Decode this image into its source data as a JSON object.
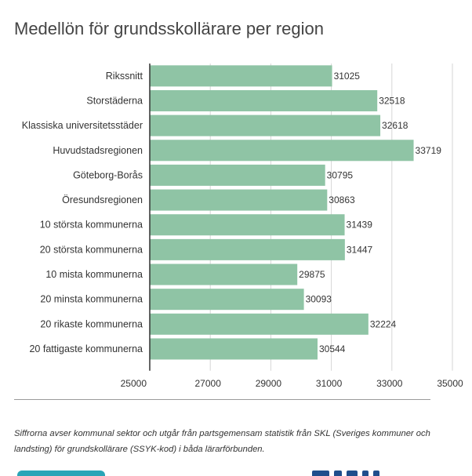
{
  "title": "Medellön för grundsskollärare per region",
  "footnote": "Siffrorna avser kommunal sektor och utgår från partsgemensam statistik från SKL (Sveriges kommuner och landsting) för grundskollärare (SSYK-kod) i båda lärarförbunden.",
  "colors": {
    "bar": "#8fc4a5",
    "grid": "#d6d6d6",
    "axis": "#333333",
    "text": "#333333"
  },
  "chart_data": {
    "type": "bar",
    "orientation": "horizontal",
    "categories": [
      "Rikssnitt",
      "Storstäderna",
      "Klassiska universitetsstäder",
      "Huvudstadsregionen",
      "Göteborg-Borås",
      "Öresundsregionen",
      "10 största kommunerna",
      "20 största kommunerna",
      "10 mista kommunerna",
      "20 minsta kommunerna",
      "20 rikaste kommunerna",
      "20 fattigaste kommunerna"
    ],
    "values": [
      31025,
      32518,
      32618,
      33719,
      30795,
      30863,
      31439,
      31447,
      29875,
      30093,
      32224,
      30544
    ],
    "xlim": [
      25000,
      35000
    ],
    "ticks": [
      "25000",
      "27000",
      "29000",
      "31000",
      "33000",
      "35000"
    ],
    "grid": true,
    "data_labels": true
  }
}
